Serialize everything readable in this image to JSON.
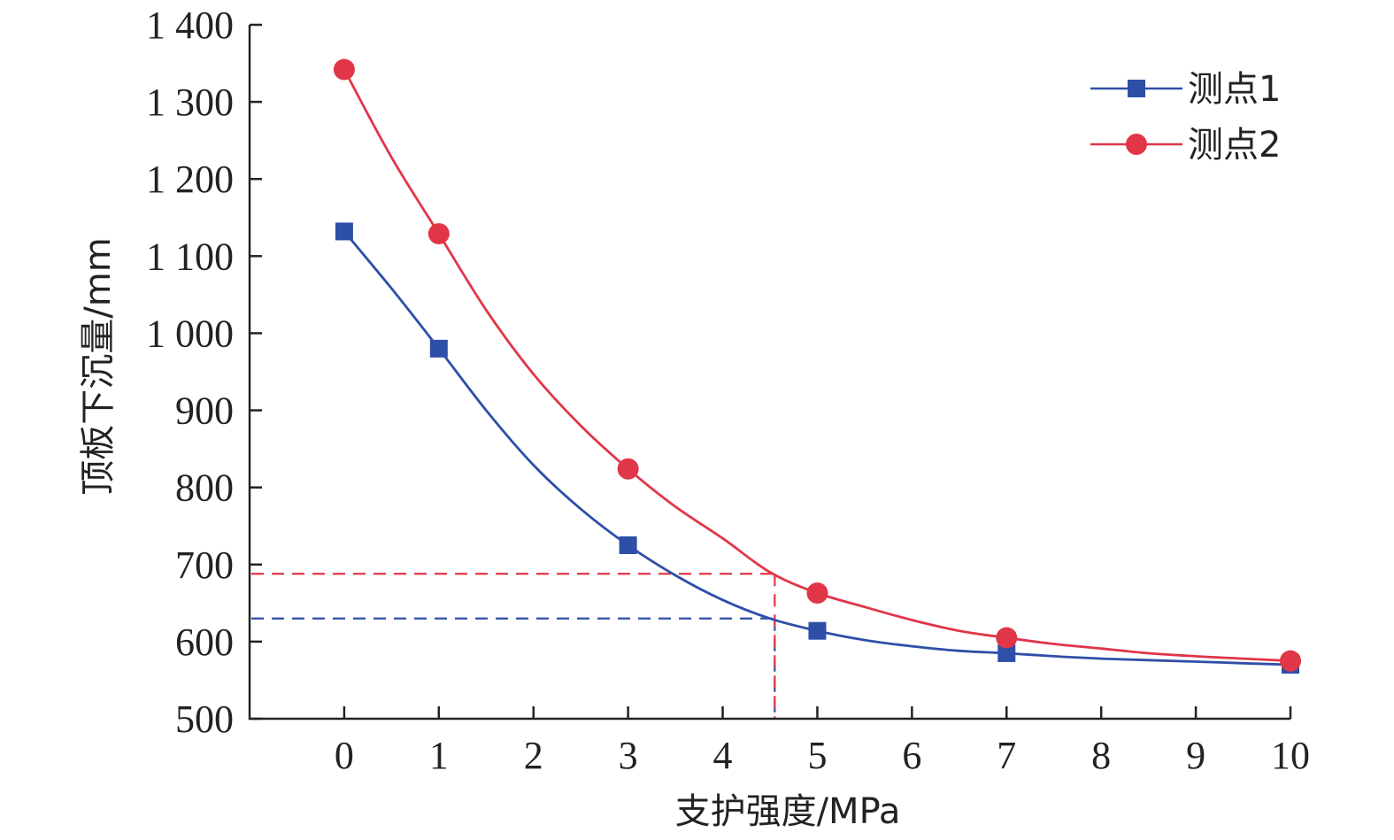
{
  "chart_data": {
    "type": "line",
    "title": "",
    "xlabel": "支护强度/MPa",
    "ylabel": "顶板下沉量/mm",
    "x_ticks": [
      0,
      1,
      2,
      3,
      4,
      5,
      6,
      7,
      8,
      9,
      10
    ],
    "x_tick_labels": [
      "0",
      "1",
      "2",
      "3",
      "4",
      "5",
      "6",
      "7",
      "8",
      "9",
      "10"
    ],
    "y_ticks": [
      500,
      600,
      700,
      800,
      900,
      1000,
      1100,
      1200,
      1300,
      1400
    ],
    "y_tick_labels": [
      "500",
      "600",
      "700",
      "800",
      "900",
      "1 000",
      "1 100",
      "1 200",
      "1 300",
      "1 400"
    ],
    "xlim": [
      -1,
      10
    ],
    "ylim": [
      500,
      1400
    ],
    "legend_position": "top-right",
    "series": [
      {
        "name": "测点1",
        "marker": "square",
        "color": "#2e4fa8",
        "x": [
          0,
          1,
          3,
          5,
          7,
          10
        ],
        "values": [
          1132,
          980,
          725,
          614,
          585,
          570
        ],
        "curve_x": [
          0,
          0.5,
          1,
          1.5,
          2,
          2.5,
          3,
          3.5,
          4,
          4.5,
          5,
          5.5,
          6,
          6.5,
          7,
          7.5,
          8,
          8.5,
          9,
          9.5,
          10
        ],
        "curve_y": [
          1132,
          1058,
          980,
          900,
          829,
          772,
          725,
          686,
          654,
          630,
          614,
          602,
          594,
          588,
          585,
          581,
          578,
          576,
          574,
          572,
          570
        ]
      },
      {
        "name": "测点2",
        "marker": "circle",
        "color": "#e03648",
        "x": [
          0,
          1,
          3,
          5,
          7,
          10
        ],
        "values": [
          1342,
          1129,
          824,
          663,
          605,
          575
        ],
        "curve_x": [
          0,
          0.5,
          1,
          1.5,
          2,
          2.5,
          3,
          3.5,
          4,
          4.5,
          5,
          5.5,
          6,
          6.5,
          7,
          7.5,
          8,
          8.5,
          9,
          9.5,
          10
        ],
        "curve_y": [
          1342,
          1228,
          1129,
          1030,
          947,
          880,
          824,
          775,
          734,
          690,
          663,
          645,
          628,
          614,
          605,
          597,
          591,
          585,
          581,
          578,
          575
        ]
      }
    ],
    "reference_lines": [
      {
        "series": "测点1",
        "x": 4.55,
        "y": 630,
        "color": "#2e4fa8",
        "style": "dashed"
      },
      {
        "series": "测点2",
        "x": 4.55,
        "y": 688,
        "color": "#e03648",
        "style": "dashed"
      }
    ]
  }
}
